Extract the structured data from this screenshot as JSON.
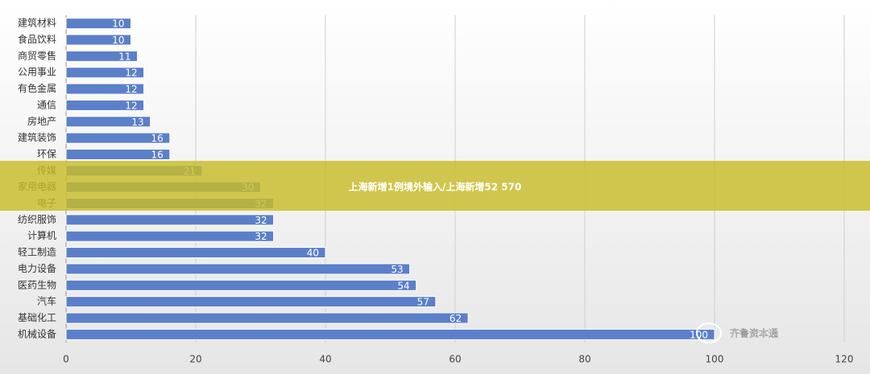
{
  "chart_data": {
    "type": "bar",
    "orientation": "horizontal",
    "categories": [
      "建筑材料",
      "食品饮料",
      "商贸零售",
      "公用事业",
      "有色金属",
      "通信",
      "房地产",
      "建筑装饰",
      "环保",
      "传媒",
      "家用电器",
      "电子",
      "纺织服饰",
      "计算机",
      "轻工制造",
      "电力设备",
      "医药生物",
      "汽车",
      "基础化工",
      "机械设备"
    ],
    "values": [
      10,
      10,
      11,
      12,
      12,
      12,
      13,
      16,
      16,
      21,
      30,
      32,
      32,
      32,
      40,
      53,
      54,
      57,
      62,
      100
    ],
    "color": "#5b7fc9",
    "xlim": [
      0,
      120
    ],
    "xticks": [
      0,
      20,
      40,
      60,
      80,
      100,
      120
    ],
    "grid": true
  },
  "banner": {
    "text": "上海新增1例境外输入/上海新增52 570"
  },
  "watermark": {
    "text": "齐鲁资本通"
  }
}
